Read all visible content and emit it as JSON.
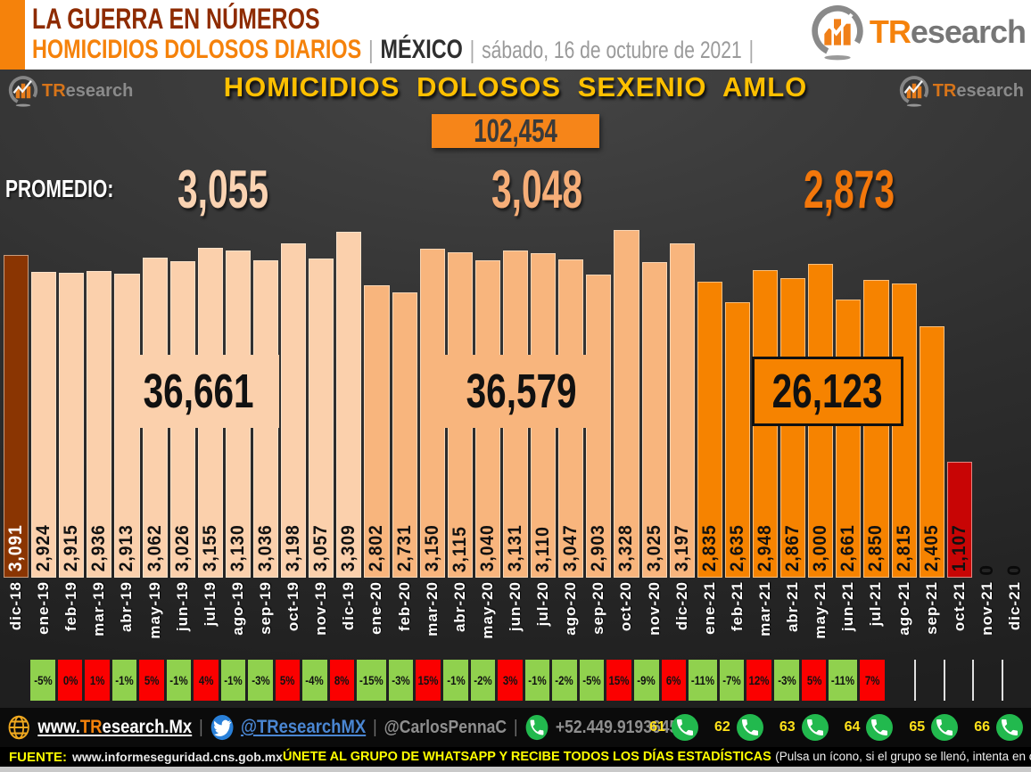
{
  "header": {
    "line1": "LA GUERRA EN NÚMEROS",
    "line2": "HOMICIDIOS DOLOSOS DIARIOS",
    "separator": "|",
    "country": "MÉXICO",
    "date": "sábado, 16 de octubre de 2021",
    "brand_orange": "TR",
    "brand_gray": "esearch"
  },
  "chart_data": {
    "type": "bar",
    "title": "HOMICIDIOS DOLOSOS SEXENIO AMLO",
    "grand_total": "102,454",
    "promedio_label": "PROMEDIO:",
    "promedios": [
      {
        "value": "3,055",
        "color": "#fad3b2"
      },
      {
        "value": "3,048",
        "color": "#f6ae78"
      },
      {
        "value": "2,873",
        "color": "#f3770b"
      }
    ],
    "year_totals": [
      {
        "value": "36,661",
        "bg": "#fbd0ac"
      },
      {
        "value": "36,579",
        "bg": "#f8b57d"
      },
      {
        "value": "26,123",
        "bg": "#f68300"
      }
    ],
    "categories": [
      "dic-18",
      "ene-19",
      "feb-19",
      "mar-19",
      "abr-19",
      "may-19",
      "jun-19",
      "jul-19",
      "ago-19",
      "sep-19",
      "oct-19",
      "nov-19",
      "dic-19",
      "ene-20",
      "feb-20",
      "mar-20",
      "abr-20",
      "may-20",
      "jun-20",
      "jul-20",
      "ago-20",
      "sep-20",
      "oct-20",
      "nov-20",
      "dic-20",
      "ene-21",
      "feb-21",
      "mar-21",
      "abr-21",
      "may-21",
      "jun-21",
      "jul-21",
      "ago-21",
      "sep-21",
      "oct-21",
      "nov-21",
      "dic-21"
    ],
    "values": [
      3091,
      2924,
      2915,
      2936,
      2913,
      3062,
      3026,
      3155,
      3130,
      3036,
      3198,
      3057,
      3309,
      2802,
      2731,
      3150,
      3115,
      3040,
      3131,
      3110,
      3047,
      2903,
      3328,
      3025,
      3197,
      2835,
      2635,
      2948,
      2867,
      3000,
      2661,
      2850,
      2815,
      2405,
      1107,
      0,
      0
    ],
    "pct_change": [
      "-5%",
      "0%",
      "1%",
      "-1%",
      "5%",
      "-1%",
      "4%",
      "-1%",
      "-3%",
      "5%",
      "-4%",
      "8%",
      "-15%",
      "-3%",
      "15%",
      "-1%",
      "-2%",
      "3%",
      "-1%",
      "-2%",
      "-5%",
      "15%",
      "-9%",
      "6%",
      "-11%",
      "-7%",
      "12%",
      "-3%",
      "5%",
      "-11%",
      "7%"
    ],
    "pct_start_index": 1,
    "ylim": [
      0,
      3400
    ],
    "colors": {
      "bar_dic18": "#8a3502",
      "bar_2019": "#fbd0ac",
      "bar_2020": "#f8b57d",
      "bar_2021": "#f68300",
      "bar_oct21": "#c80505",
      "pct_negative": "#90d14e",
      "pct_positive": "#fb0000"
    }
  },
  "footer": {
    "website_prefix": "www.",
    "website_tr": "TR",
    "website_rest": "esearch.Mx",
    "twitter_handle": "@TResearchMX",
    "author_handle": "@CarlosPennaC",
    "phone": "+52.449.9193645",
    "separator": "|",
    "whatsapp_groups": [
      "61",
      "62",
      "63",
      "64",
      "65",
      "66"
    ]
  },
  "source_bar": {
    "fuente_label": "FUENTE:",
    "fuente_url": "www.informeseguridad.cns.gob.mx",
    "cta_bold": "ÚNETE AL GRUPO DE WHATSAPP Y RECIBE TODOS LOS DÍAS ESTADÍSTICAS",
    "cta_note": "(Pulsa un ícono, si el grupo se llenó, intenta en otro)"
  }
}
